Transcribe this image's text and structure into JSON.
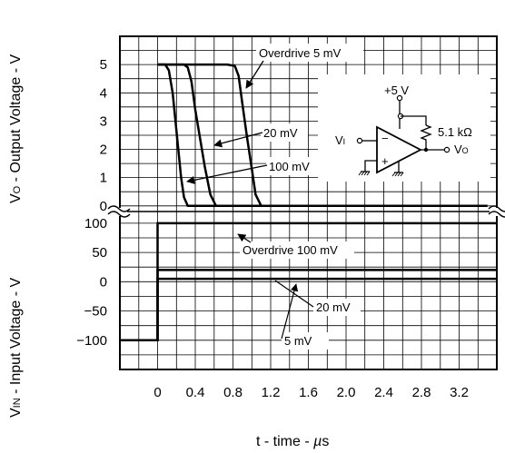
{
  "chart_data": [
    {
      "type": "line",
      "panel": "output",
      "ylabel": "VO - Output Voltage - V",
      "ylabel_parts": [
        "V",
        "O",
        " - Output  Voltage - V"
      ],
      "yticks": [
        "0",
        "1",
        "2",
        "3",
        "4",
        "5"
      ],
      "ylim": [
        -0.2,
        6.0
      ],
      "series": [
        {
          "name": "Overdrive 5 mV",
          "x": [
            0,
            0.6,
            0.74,
            0.82,
            0.86,
            0.9,
            0.95,
            1.0,
            1.04,
            1.1,
            1.4,
            3.5
          ],
          "y": [
            5,
            5,
            5,
            4.95,
            4.6,
            3.6,
            2.4,
            1.3,
            0.4,
            0,
            0,
            0
          ]
        },
        {
          "name": "20 mV",
          "x": [
            0,
            0.28,
            0.32,
            0.36,
            0.4,
            0.45,
            0.5,
            0.56,
            0.62,
            1.0,
            3.5
          ],
          "y": [
            5,
            5,
            4.9,
            4.4,
            3.4,
            2.4,
            1.4,
            0.4,
            0,
            0,
            0
          ]
        },
        {
          "name": "100 mV",
          "x": [
            0,
            0.08,
            0.12,
            0.16,
            0.19,
            0.22,
            0.25,
            0.28,
            0.32,
            0.6,
            3.5
          ],
          "y": [
            5,
            5,
            4.8,
            4.0,
            3.0,
            2.0,
            1.0,
            0.3,
            0,
            0,
            0
          ]
        }
      ],
      "annotations": [
        "Overdrive 5 mV",
        "20 mV",
        "100 mV"
      ]
    },
    {
      "type": "line",
      "panel": "input",
      "ylabel": "VIN - Input  Voltage - V",
      "ylabel_parts": [
        "V",
        "IN",
        " - Input  Voltage - V"
      ],
      "yticks": [
        "100",
        "50",
        "0",
        "−50",
        "−100"
      ],
      "ylim": [
        -150,
        120
      ],
      "xlabel": "t - time - µs",
      "xlabel_parts": [
        "t - time - ",
        "µ",
        "s"
      ],
      "xticks": [
        "0",
        "0.4",
        "0.8",
        "1.2",
        "1.6",
        "2.0",
        "2.4",
        "2.8",
        "3.2"
      ],
      "xlim": [
        -0.4,
        3.6
      ],
      "series": [
        {
          "name": "Overdrive 100 mV",
          "x": [
            -0.4,
            0,
            0,
            3.6
          ],
          "y": [
            -100,
            -100,
            100,
            100
          ]
        },
        {
          "name": "20 mV",
          "x": [
            -0.4,
            0,
            0,
            3.6
          ],
          "y": [
            -100,
            -100,
            20,
            20
          ]
        },
        {
          "name": "5 mV",
          "x": [
            -0.4,
            0,
            0,
            3.6
          ],
          "y": [
            -100,
            -100,
            5,
            5
          ]
        }
      ],
      "annotations": [
        "Overdrive 100 mV",
        "20 mV",
        "5 mV"
      ]
    }
  ],
  "schematic": {
    "supply": "+5 V",
    "resistor": "5.1 kΩ",
    "input": [
      "V",
      "I"
    ],
    "output": [
      "V",
      "O"
    ],
    "minus": "−",
    "plus": "+"
  }
}
